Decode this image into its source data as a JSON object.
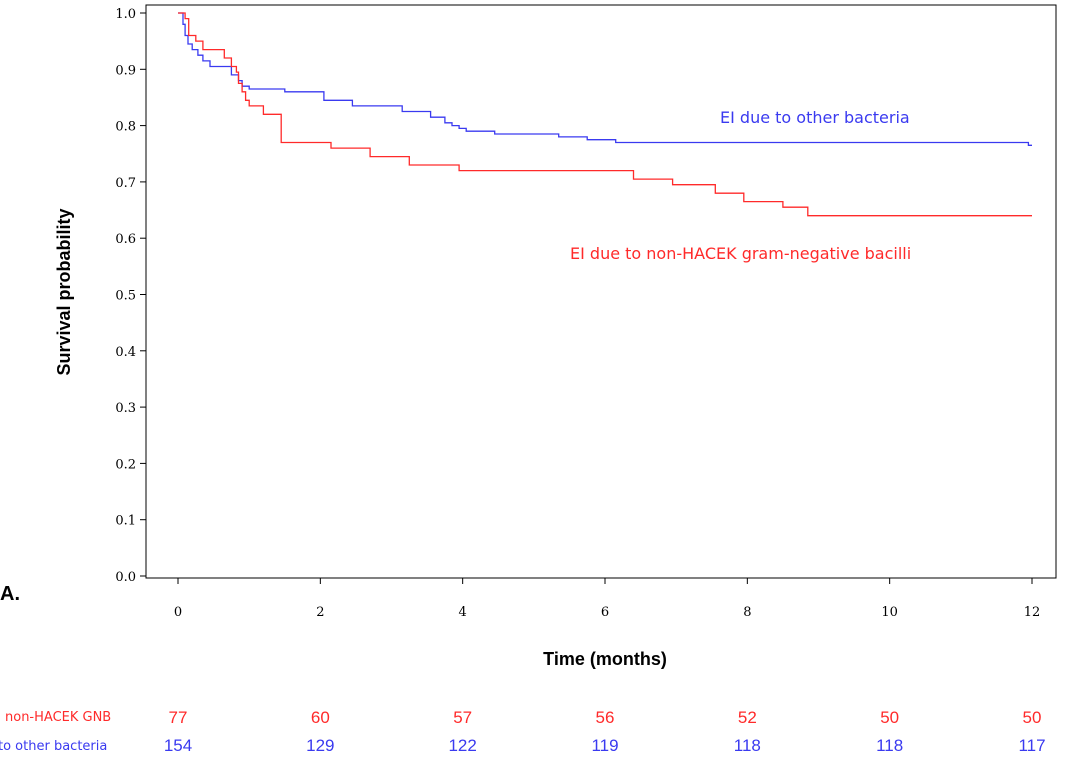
{
  "panel_label": "A.",
  "colors": {
    "non_hacek": "#ff2a2a",
    "other": "#3a3af0"
  },
  "chart_data": {
    "type": "line",
    "xlabel": "Time (months)",
    "ylabel": "Survival probability",
    "xlim": [
      0,
      12
    ],
    "ylim": [
      0,
      1
    ],
    "x_ticks": [
      "0",
      "2",
      "4",
      "6",
      "8",
      "10",
      "12"
    ],
    "y_ticks": [
      "0.0",
      "0.1",
      "0.2",
      "0.3",
      "0.4",
      "0.5",
      "0.6",
      "0.7",
      "0.8",
      "0.9",
      "1.0"
    ],
    "series": [
      {
        "name": "EI due to other bacteria",
        "color": "#3a3af0",
        "points": [
          [
            0,
            1.0
          ],
          [
            0.07,
            0.98
          ],
          [
            0.1,
            0.96
          ],
          [
            0.14,
            0.945
          ],
          [
            0.2,
            0.935
          ],
          [
            0.28,
            0.925
          ],
          [
            0.35,
            0.915
          ],
          [
            0.45,
            0.905
          ],
          [
            0.7,
            0.905
          ],
          [
            0.75,
            0.89
          ],
          [
            0.85,
            0.88
          ],
          [
            0.9,
            0.87
          ],
          [
            1.0,
            0.865
          ],
          [
            1.45,
            0.865
          ],
          [
            1.5,
            0.86
          ],
          [
            2.0,
            0.86
          ],
          [
            2.05,
            0.845
          ],
          [
            2.4,
            0.845
          ],
          [
            2.45,
            0.835
          ],
          [
            3.1,
            0.835
          ],
          [
            3.15,
            0.825
          ],
          [
            3.5,
            0.825
          ],
          [
            3.55,
            0.815
          ],
          [
            3.75,
            0.805
          ],
          [
            3.85,
            0.8
          ],
          [
            3.95,
            0.795
          ],
          [
            4.05,
            0.79
          ],
          [
            4.4,
            0.79
          ],
          [
            4.45,
            0.785
          ],
          [
            5.3,
            0.785
          ],
          [
            5.35,
            0.78
          ],
          [
            5.7,
            0.78
          ],
          [
            5.75,
            0.775
          ],
          [
            6.1,
            0.775
          ],
          [
            6.15,
            0.77
          ],
          [
            11.9,
            0.77
          ],
          [
            11.95,
            0.765
          ],
          [
            12.0,
            0.765
          ]
        ]
      },
      {
        "name": "EI due to non-HACEK gram-negative bacilli",
        "color": "#ff2a2a",
        "points": [
          [
            0,
            1.0
          ],
          [
            0.1,
            0.99
          ],
          [
            0.15,
            0.96
          ],
          [
            0.25,
            0.95
          ],
          [
            0.35,
            0.935
          ],
          [
            0.6,
            0.935
          ],
          [
            0.65,
            0.92
          ],
          [
            0.75,
            0.905
          ],
          [
            0.82,
            0.895
          ],
          [
            0.85,
            0.875
          ],
          [
            0.9,
            0.86
          ],
          [
            0.95,
            0.845
          ],
          [
            1.0,
            0.835
          ],
          [
            1.2,
            0.82
          ],
          [
            1.4,
            0.82
          ],
          [
            1.45,
            0.77
          ],
          [
            2.1,
            0.77
          ],
          [
            2.15,
            0.76
          ],
          [
            2.65,
            0.76
          ],
          [
            2.7,
            0.745
          ],
          [
            3.2,
            0.745
          ],
          [
            3.25,
            0.73
          ],
          [
            3.9,
            0.73
          ],
          [
            3.95,
            0.72
          ],
          [
            6.35,
            0.72
          ],
          [
            6.4,
            0.705
          ],
          [
            6.9,
            0.705
          ],
          [
            6.95,
            0.695
          ],
          [
            7.5,
            0.695
          ],
          [
            7.55,
            0.68
          ],
          [
            7.9,
            0.68
          ],
          [
            7.95,
            0.665
          ],
          [
            8.45,
            0.665
          ],
          [
            8.5,
            0.655
          ],
          [
            8.8,
            0.655
          ],
          [
            8.85,
            0.64
          ],
          [
            12.0,
            0.64
          ]
        ]
      }
    ],
    "series_labels": {
      "other": "EI due to other bacteria",
      "non_hacek": "EI due to non-HACEK gram-negative bacilli"
    },
    "risk_table": {
      "row_labels": {
        "non_hacek": "non-HACEK GNB",
        "other": "to other bacteria"
      },
      "non_hacek": [
        "77",
        "60",
        "57",
        "56",
        "52",
        "50",
        "50"
      ],
      "other": [
        "154",
        "129",
        "122",
        "119",
        "118",
        "118",
        "117"
      ]
    }
  }
}
